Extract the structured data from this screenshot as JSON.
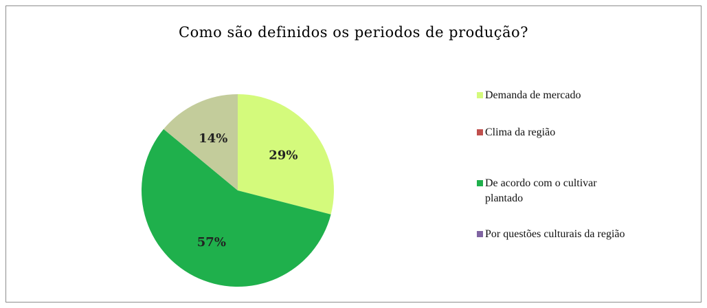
{
  "chart_data": {
    "type": "pie",
    "title": "Como são definidos os periodos de produção?",
    "categories": [
      "Demanda de mercado",
      "Clima da região",
      "De acordo com o cultivar plantado",
      "Por questões culturais da região"
    ],
    "values": [
      29,
      0,
      57,
      14
    ],
    "data_labels": [
      "29%",
      "",
      "57%",
      "14%"
    ],
    "colors": [
      "#d4fa7c",
      "#c0504d",
      "#1fb04c",
      "#c3cc9b"
    ],
    "legend_colors": [
      "#d4fa7c",
      "#c0504d",
      "#1fb04c",
      "#8064a2"
    ],
    "legend": {
      "placement": "right",
      "items": [
        {
          "label": "Demanda de mercado",
          "color": "#d4fa7c"
        },
        {
          "label": "Clima da região",
          "color": "#c0504d"
        },
        {
          "label": "De acordo com o cultivar plantado",
          "color": "#1fb04c"
        },
        {
          "label": "Por questões culturais da região",
          "color": "#8064a2"
        }
      ]
    }
  }
}
